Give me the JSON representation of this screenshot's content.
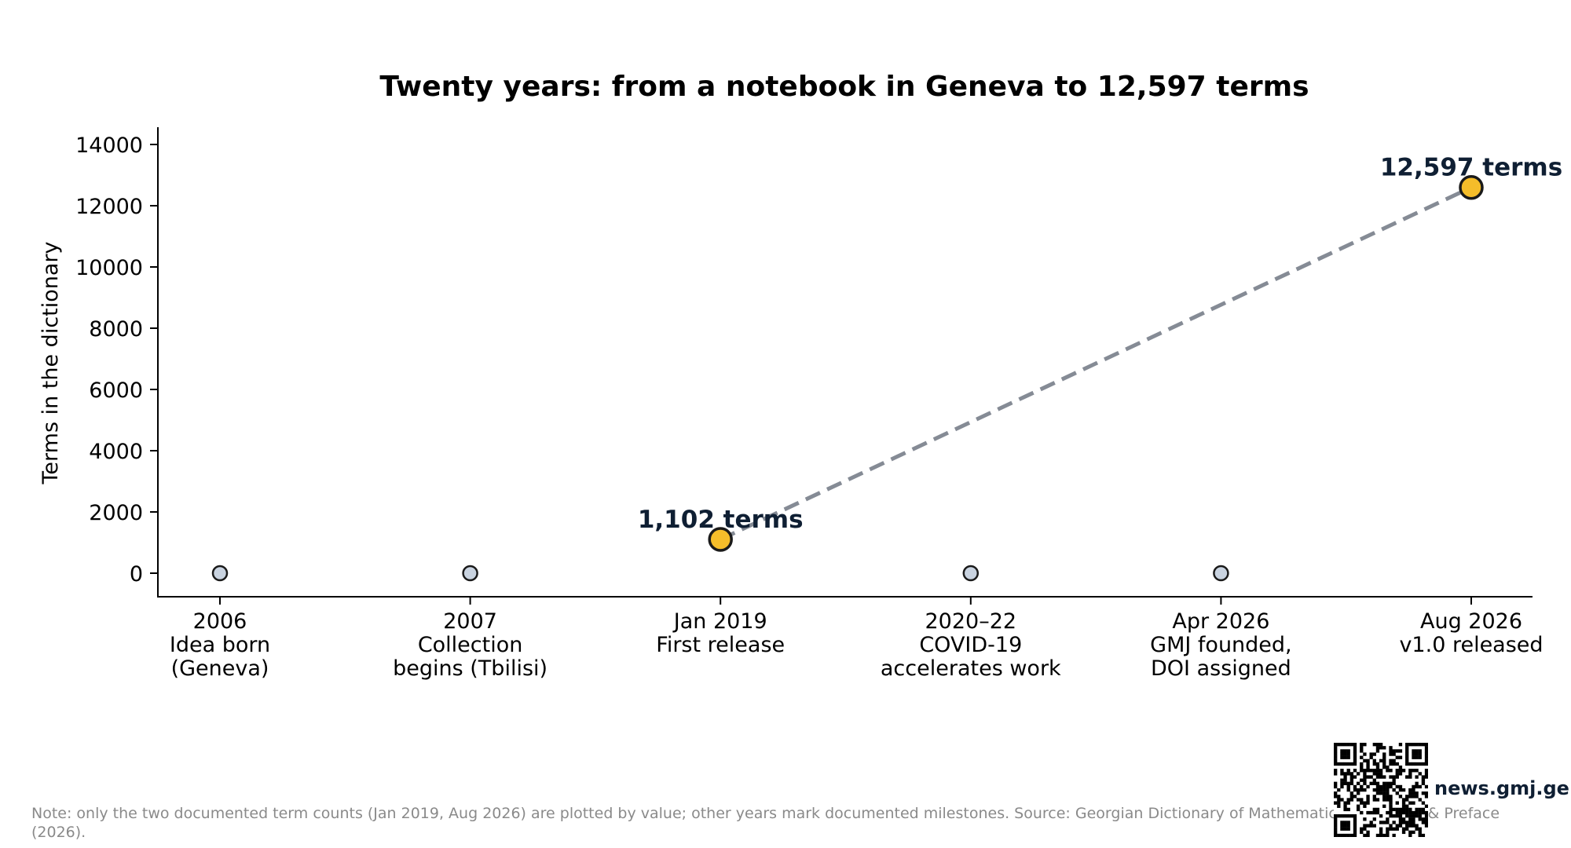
{
  "chart_data": {
    "type": "line",
    "title": "Twenty years: from a notebook in Geneva to 12,597 terms",
    "xlabel": "",
    "ylabel": "Terms in the dictionary",
    "ylim": [
      -800,
      14500
    ],
    "yticks": [
      "0",
      "2000",
      "4000",
      "6000",
      "8000",
      "10000",
      "12000",
      "14000"
    ],
    "grid": false,
    "categories": [
      [
        "2006",
        "Idea born",
        "(Geneva)"
      ],
      [
        "2007",
        "Collection",
        "begins (Tbilisi)"
      ],
      [
        "Jan 2019",
        "First release"
      ],
      [
        "2020–22",
        "COVID-19",
        "accelerates work"
      ],
      [
        "Apr 2026",
        "GMJ founded,",
        "DOI assigned"
      ],
      [
        "Aug 2026",
        "v1.0 released"
      ]
    ],
    "milestones": [
      {
        "index": 0,
        "value": 0
      },
      {
        "index": 1,
        "value": 0
      },
      {
        "index": 3,
        "value": 0
      },
      {
        "index": 4,
        "value": 0
      }
    ],
    "term_counts": [
      {
        "index": 2,
        "value": 1102,
        "label": "1,102 terms"
      },
      {
        "index": 5,
        "value": 12597,
        "label": "12,597 terms"
      }
    ],
    "colors": {
      "milestone_fill": "#c9d3e0",
      "count_fill": "#f5bd2a",
      "marker_edge": "#1a1a1a",
      "connector": "#858b95",
      "callout_text": "#0f1f33"
    }
  },
  "footer": {
    "note": "Note: only the two documented term counts (Jan 2019, Aug 2026) are plotted by value; other years mark documented milestones. Source: Georgian Dictionary of Mathematics, Foreword & Preface (2026).",
    "site": "news.gmj.ge",
    "qr_icon": "qr-code-icon"
  }
}
